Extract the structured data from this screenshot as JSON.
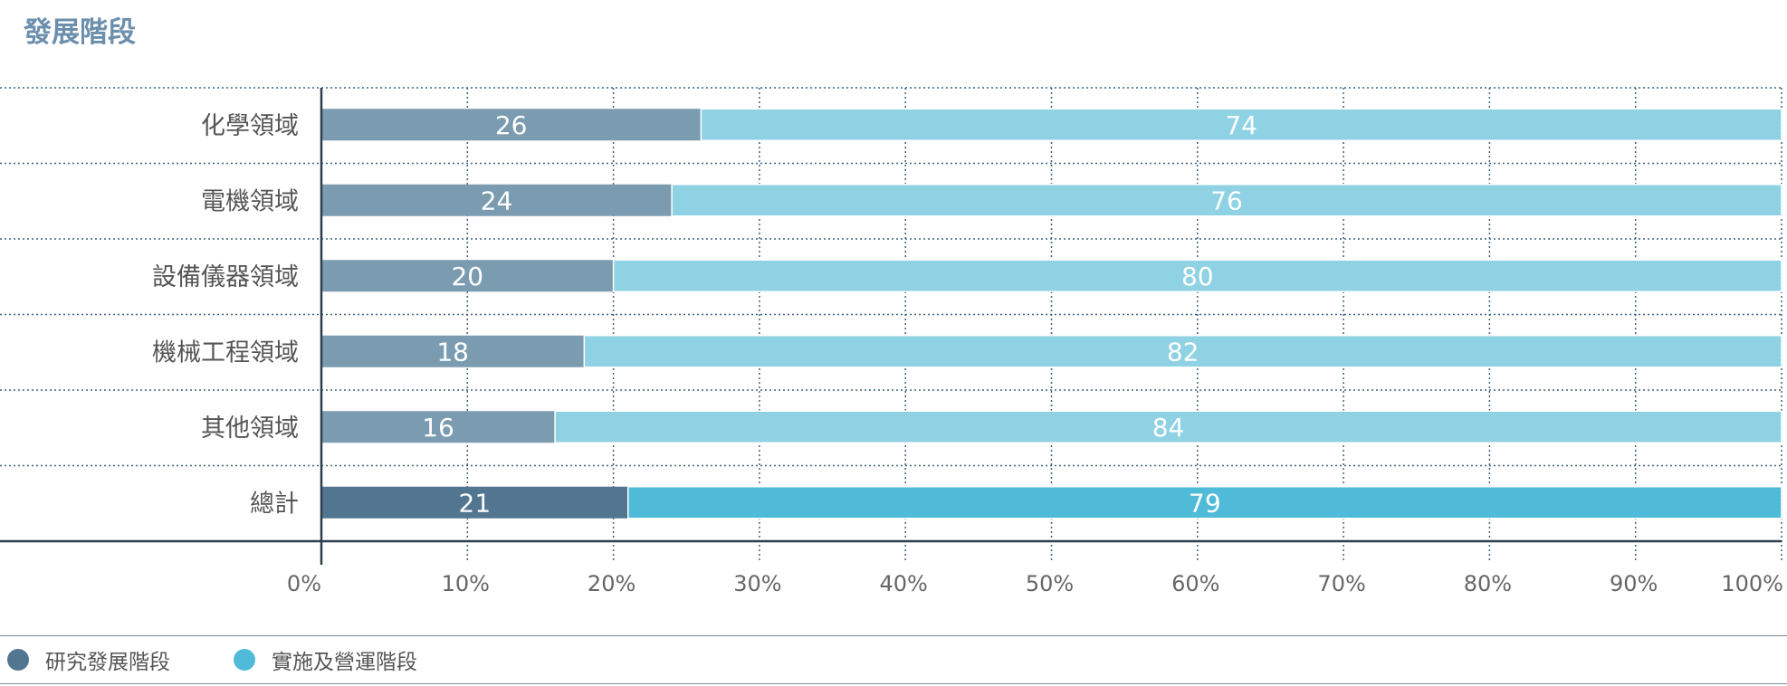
{
  "title": "發展階段",
  "chart_data": {
    "type": "bar",
    "orientation": "horizontal",
    "stacked": true,
    "categories": [
      "化學領域",
      "電機領域",
      "設備儀器領域",
      "機械工程領域",
      "其他領域",
      "總計"
    ],
    "series": [
      {
        "name": "研究發展階段",
        "values": [
          26,
          24,
          20,
          18,
          16,
          21
        ],
        "color": "#7b9cb0",
        "total_color": "#52768f"
      },
      {
        "name": "實施及營運階段",
        "values": [
          74,
          76,
          80,
          82,
          84,
          79
        ],
        "color": "#8fd2e4",
        "total_color": "#4fbbd9"
      }
    ],
    "xlim": [
      0,
      100
    ],
    "x_ticks": [
      "0%",
      "10%",
      "20%",
      "30%",
      "40%",
      "50%",
      "60%",
      "70%",
      "80%",
      "90%",
      "100%"
    ],
    "grid": true,
    "legend_position": "bottom-left"
  }
}
